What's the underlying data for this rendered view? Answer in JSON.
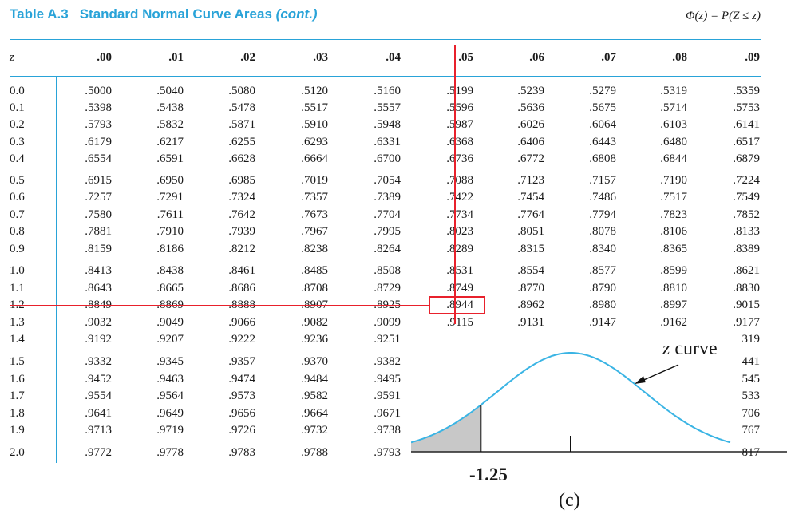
{
  "title": {
    "number": "Table A.3",
    "main": "Standard Normal Curve Areas",
    "cont": "(cont.)"
  },
  "formula": "Φ(z) = P(Z ≤ z)",
  "header": {
    "z": "z",
    "cols": [
      ".00",
      ".01",
      ".02",
      ".03",
      ".04",
      ".05",
      ".06",
      ".07",
      ".08",
      ".09"
    ]
  },
  "rows": [
    {
      "z": "0.0",
      "v": [
        ".5000",
        ".5040",
        ".5080",
        ".5120",
        ".5160",
        ".5199",
        ".5239",
        ".5279",
        ".5319",
        ".5359"
      ]
    },
    {
      "z": "0.1",
      "v": [
        ".5398",
        ".5438",
        ".5478",
        ".5517",
        ".5557",
        ".5596",
        ".5636",
        ".5675",
        ".5714",
        ".5753"
      ]
    },
    {
      "z": "0.2",
      "v": [
        ".5793",
        ".5832",
        ".5871",
        ".5910",
        ".5948",
        ".5987",
        ".6026",
        ".6064",
        ".6103",
        ".6141"
      ]
    },
    {
      "z": "0.3",
      "v": [
        ".6179",
        ".6217",
        ".6255",
        ".6293",
        ".6331",
        ".6368",
        ".6406",
        ".6443",
        ".6480",
        ".6517"
      ]
    },
    {
      "z": "0.4",
      "v": [
        ".6554",
        ".6591",
        ".6628",
        ".6664",
        ".6700",
        ".6736",
        ".6772",
        ".6808",
        ".6844",
        ".6879"
      ]
    },
    {
      "z": "0.5",
      "v": [
        ".6915",
        ".6950",
        ".6985",
        ".7019",
        ".7054",
        ".7088",
        ".7123",
        ".7157",
        ".7190",
        ".7224"
      ]
    },
    {
      "z": "0.6",
      "v": [
        ".7257",
        ".7291",
        ".7324",
        ".7357",
        ".7389",
        ".7422",
        ".7454",
        ".7486",
        ".7517",
        ".7549"
      ]
    },
    {
      "z": "0.7",
      "v": [
        ".7580",
        ".7611",
        ".7642",
        ".7673",
        ".7704",
        ".7734",
        ".7764",
        ".7794",
        ".7823",
        ".7852"
      ]
    },
    {
      "z": "0.8",
      "v": [
        ".7881",
        ".7910",
        ".7939",
        ".7967",
        ".7995",
        ".8023",
        ".8051",
        ".8078",
        ".8106",
        ".8133"
      ]
    },
    {
      "z": "0.9",
      "v": [
        ".8159",
        ".8186",
        ".8212",
        ".8238",
        ".8264",
        ".8289",
        ".8315",
        ".8340",
        ".8365",
        ".8389"
      ]
    },
    {
      "z": "1.0",
      "v": [
        ".8413",
        ".8438",
        ".8461",
        ".8485",
        ".8508",
        ".8531",
        ".8554",
        ".8577",
        ".8599",
        ".8621"
      ]
    },
    {
      "z": "1.1",
      "v": [
        ".8643",
        ".8665",
        ".8686",
        ".8708",
        ".8729",
        ".8749",
        ".8770",
        ".8790",
        ".8810",
        ".8830"
      ]
    },
    {
      "z": "1.2",
      "v": [
        ".8849",
        ".8869",
        ".8888",
        ".8907",
        ".8925",
        ".8944",
        ".8962",
        ".8980",
        ".8997",
        ".9015"
      ]
    },
    {
      "z": "1.3",
      "v": [
        ".9032",
        ".9049",
        ".9066",
        ".9082",
        ".9099",
        ".9115",
        ".9131",
        ".9147",
        ".9162",
        ".9177"
      ]
    },
    {
      "z": "1.4",
      "v": [
        ".9192",
        ".9207",
        ".9222",
        ".9236",
        ".9251",
        "",
        "",
        "",
        "",
        "319"
      ]
    },
    {
      "z": "1.5",
      "v": [
        ".9332",
        ".9345",
        ".9357",
        ".9370",
        ".9382",
        "",
        "",
        "",
        "",
        "441"
      ]
    },
    {
      "z": "1.6",
      "v": [
        ".9452",
        ".9463",
        ".9474",
        ".9484",
        ".9495",
        "",
        "",
        "",
        "",
        "545"
      ]
    },
    {
      "z": "1.7",
      "v": [
        ".9554",
        ".9564",
        ".9573",
        ".9582",
        ".9591",
        "",
        "",
        "",
        "",
        "533"
      ]
    },
    {
      "z": "1.8",
      "v": [
        ".9641",
        ".9649",
        ".9656",
        ".9664",
        ".9671",
        "",
        "",
        "",
        "",
        "706"
      ]
    },
    {
      "z": "1.9",
      "v": [
        ".9713",
        ".9719",
        ".9726",
        ".9732",
        ".9738",
        "",
        "",
        "",
        "",
        "767"
      ]
    },
    {
      "z": "2.0",
      "v": [
        ".9772",
        ".9778",
        ".9783",
        ".9788",
        ".9793",
        "",
        "",
        "",
        "",
        "817"
      ]
    }
  ],
  "highlight": {
    "row": "1.2",
    "col": ".05",
    "value": ".8944",
    "color": "#e8212c"
  },
  "inset": {
    "curve_label_z": "z",
    "curve_label_word": "curve",
    "marker_label": "-1.25",
    "panel_label": "(c)",
    "curve_color": "#3ab4e4",
    "shade_color": "#c8c8c8"
  }
}
